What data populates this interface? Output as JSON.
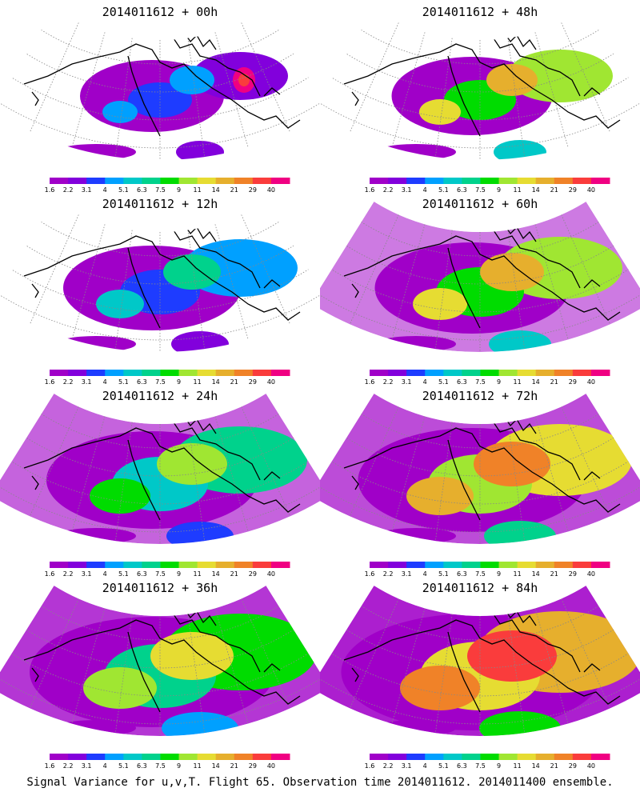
{
  "panels": [
    {
      "title": "2014011612 + 00h",
      "lead": "00h"
    },
    {
      "title": "2014011612 + 48h",
      "lead": "48h"
    },
    {
      "title": "2014011612 + 12h",
      "lead": "12h"
    },
    {
      "title": "2014011612 + 60h",
      "lead": "60h"
    },
    {
      "title": "2014011612 + 24h",
      "lead": "24h"
    },
    {
      "title": "2014011612 + 72h",
      "lead": "72h"
    },
    {
      "title": "2014011612 + 36h",
      "lead": "36h"
    },
    {
      "title": "2014011612 + 84h",
      "lead": "84h"
    }
  ],
  "colorbar": {
    "labels": [
      "1.6",
      "2.2",
      "3.1",
      "4",
      "5.1",
      "6.3",
      "7.5",
      "9",
      "11",
      "14",
      "21",
      "29",
      "40"
    ],
    "colors": [
      "#a000c8",
      "#8200dc",
      "#1e3cff",
      "#00a0ff",
      "#00c8c8",
      "#00d28c",
      "#00dc00",
      "#a0e632",
      "#e6dc32",
      "#e6af2d",
      "#f08228",
      "#fa3c3c",
      "#f00082"
    ]
  },
  "caption": "Signal Variance for u,v,T. Flight 65. Observation time 2014011612. 2014011400 ensemble."
}
